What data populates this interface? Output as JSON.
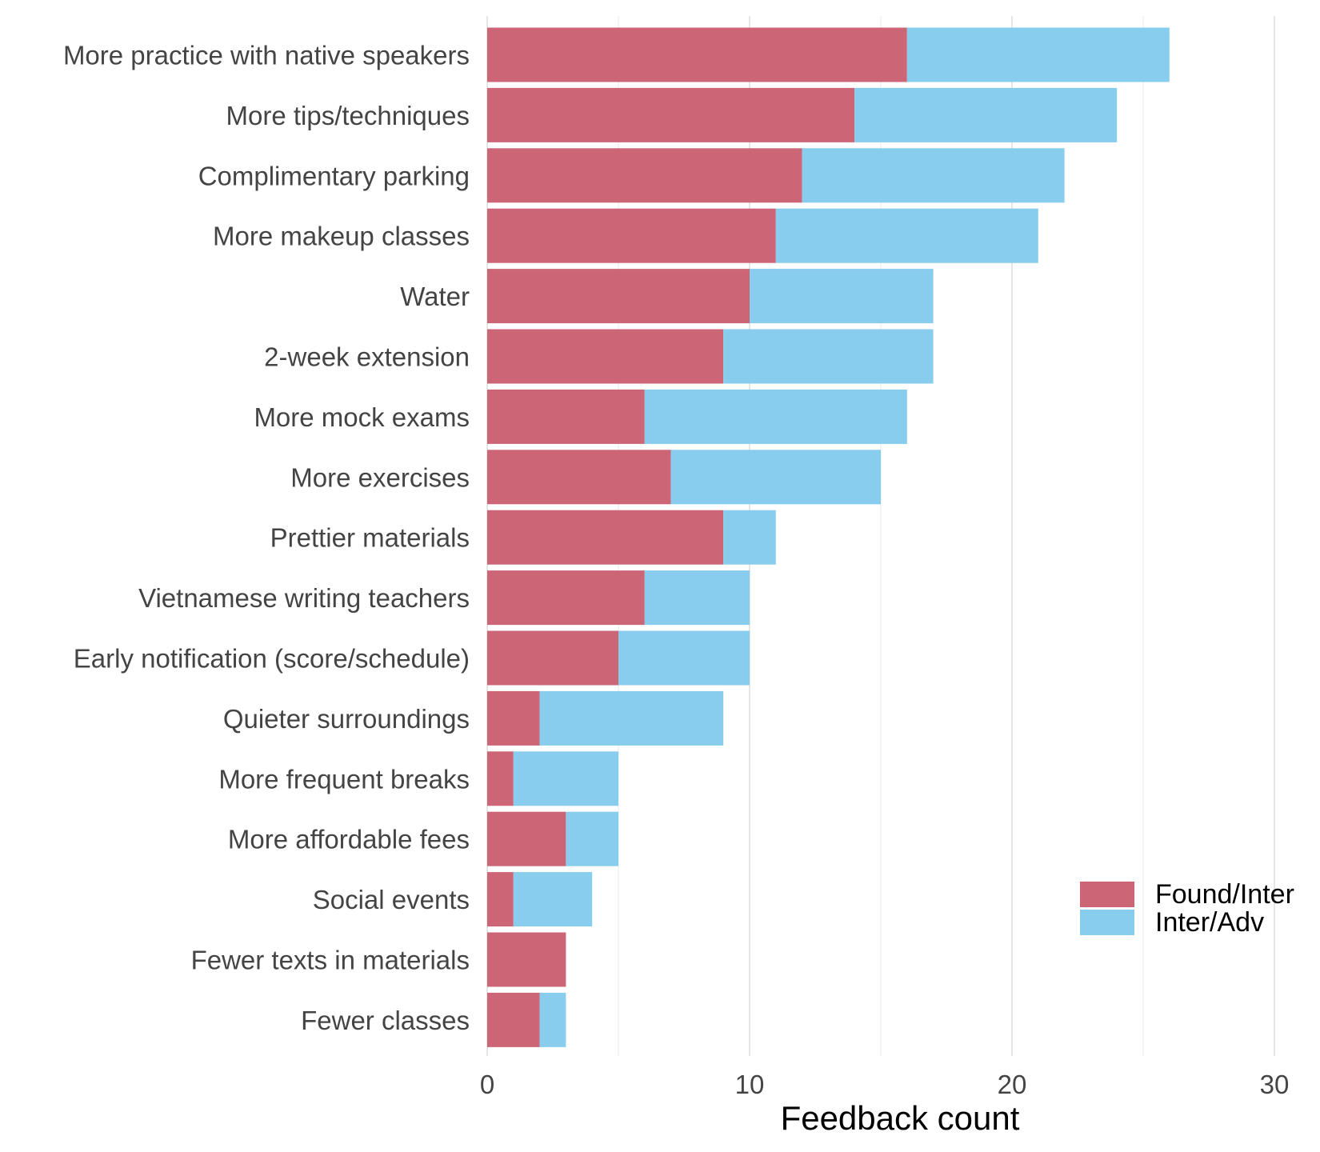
{
  "chart_data": {
    "type": "bar",
    "orientation": "horizontal",
    "stacked": true,
    "categories": [
      "More practice with native speakers",
      "More tips/techniques",
      "Complimentary parking",
      "More makeup classes",
      "Water",
      "2-week extension",
      "More mock exams",
      "More exercises",
      "Prettier materials",
      "Vietnamese writing teachers",
      "Early notification (score/schedule)",
      "Quieter surroundings",
      "More frequent breaks",
      "More affordable fees",
      "Social events",
      "Fewer texts in materials",
      "Fewer classes"
    ],
    "series": [
      {
        "name": "Found/Inter",
        "color": "#cc6677",
        "values": [
          16,
          14,
          12,
          11,
          10,
          9,
          6,
          7,
          9,
          6,
          5,
          2,
          1,
          3,
          1,
          3,
          2
        ]
      },
      {
        "name": "Inter/Adv",
        "color": "#88ccee",
        "values": [
          10,
          10,
          10,
          10,
          7,
          8,
          10,
          8,
          2,
          4,
          5,
          7,
          4,
          2,
          3,
          0,
          1
        ]
      }
    ],
    "xlabel": "Feedback count",
    "xlim": [
      0,
      30
    ],
    "xticks": [
      "0",
      "10",
      "20",
      "30"
    ],
    "grid": "vertical",
    "legend_position": "bottom-right"
  }
}
